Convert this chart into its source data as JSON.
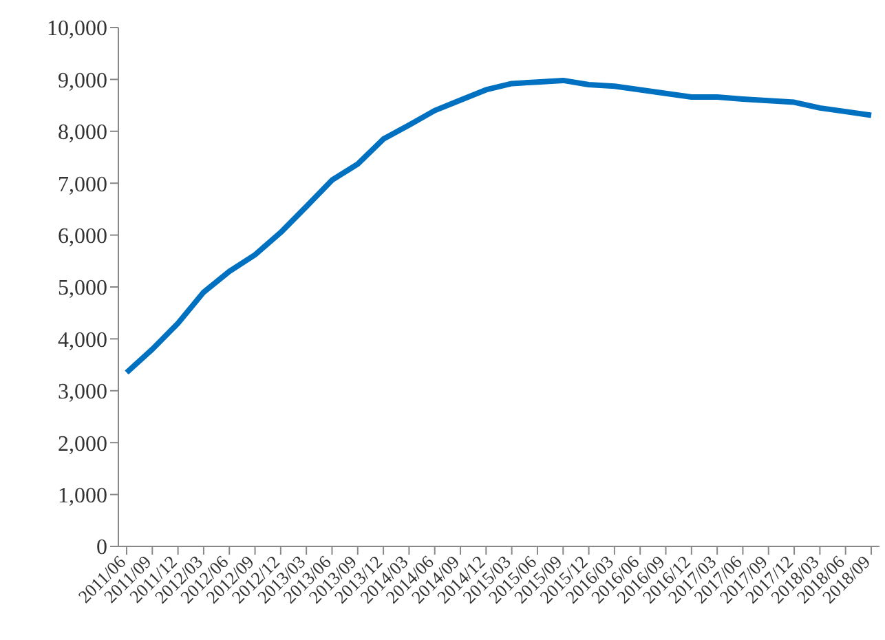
{
  "chart_data": {
    "type": "line",
    "categories": [
      "2011/06",
      "2011/09",
      "2011/12",
      "2012/03",
      "2012/06",
      "2012/09",
      "2012/12",
      "2013/03",
      "2013/06",
      "2013/09",
      "2013/12",
      "2014/03",
      "2014/06",
      "2014/09",
      "2014/12",
      "2015/03",
      "2015/06",
      "2015/09",
      "2015/12",
      "2016/03",
      "2016/06",
      "2016/09",
      "2016/12",
      "2017/03",
      "2017/06",
      "2017/09",
      "2017/12",
      "2018/03",
      "2018/06",
      "2018/09"
    ],
    "series": [
      {
        "color": "#0070c0",
        "values": [
          3350,
          3800,
          4300,
          4900,
          5300,
          5620,
          6050,
          6550,
          7060,
          7370,
          7850,
          8120,
          8400,
          8600,
          8800,
          8920,
          8950,
          8980,
          8900,
          8870,
          8800,
          8730,
          8660,
          8660,
          8620,
          8590,
          8560,
          8450,
          8380,
          8310
        ]
      }
    ],
    "ylim": [
      0,
      10000
    ],
    "yticks": [
      0,
      {
        "value": 1000,
        "label": "1,000"
      },
      {
        "value": 2000,
        "label": "2,000"
      },
      {
        "value": 3000,
        "label": "3,000"
      },
      {
        "value": 4000,
        "label": "4,000"
      },
      {
        "value": 5000,
        "label": "5,000"
      },
      {
        "value": 6000,
        "label": "6,000"
      },
      {
        "value": 7000,
        "label": "7,000"
      },
      {
        "value": 8000,
        "label": "8,000"
      },
      {
        "value": 9000,
        "label": "9,000"
      },
      {
        "value": 10000,
        "label": "10,000"
      }
    ],
    "grid": false,
    "legend": false,
    "marker": "none",
    "line_style": "solid"
  }
}
